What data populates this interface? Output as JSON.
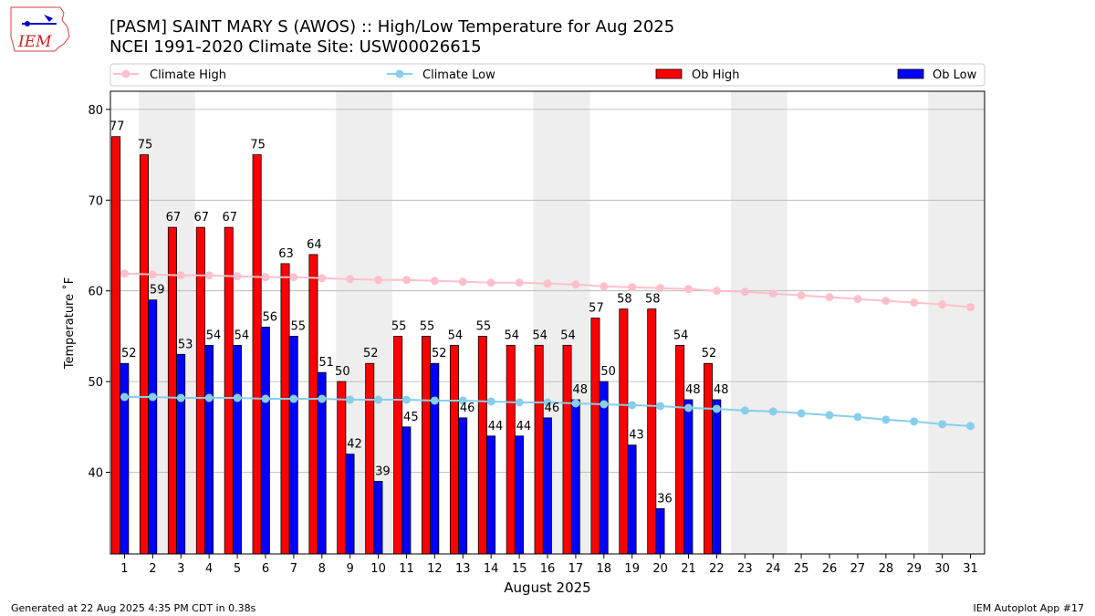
{
  "header": {
    "title_line1": "[PASM] SAINT MARY S (AWOS) :: High/Low Temperature for Aug 2025",
    "title_line2": "NCEI 1991-2020 Climate Site: USW00026615",
    "logo_text": "IEM"
  },
  "footer": {
    "left": "Generated at 22 Aug 2025 4:35 PM CDT in 0.38s",
    "right": "IEM Autoplot App #17"
  },
  "colors": {
    "climate_high": "#ffc0cb",
    "climate_low": "#87ceeb",
    "ob_high": "#ff0000",
    "ob_low": "#0000ff",
    "weekend_band": "#eeeeee",
    "grid": "#b0b0b0"
  },
  "chart_data": {
    "type": "bar",
    "xlabel": "August 2025",
    "ylabel": "Temperature ˚F",
    "ylim": [
      31,
      82
    ],
    "yticks": [
      40,
      50,
      60,
      70,
      80
    ],
    "grid": true,
    "legend_position": "top",
    "days": [
      1,
      2,
      3,
      4,
      5,
      6,
      7,
      8,
      9,
      10,
      11,
      12,
      13,
      14,
      15,
      16,
      17,
      18,
      19,
      20,
      21,
      22,
      23,
      24,
      25,
      26,
      27,
      28,
      29,
      30,
      31
    ],
    "weekend_bands": [
      [
        2,
        3
      ],
      [
        9,
        10
      ],
      [
        16,
        17
      ],
      [
        23,
        24
      ],
      [
        30,
        31
      ]
    ],
    "series": [
      {
        "name": "Climate High",
        "kind": "line",
        "values": [
          61.9,
          61.8,
          61.7,
          61.7,
          61.6,
          61.5,
          61.5,
          61.4,
          61.3,
          61.2,
          61.2,
          61.1,
          61.0,
          60.9,
          60.9,
          60.8,
          60.7,
          60.5,
          60.4,
          60.3,
          60.2,
          60.0,
          59.9,
          59.7,
          59.5,
          59.3,
          59.1,
          58.9,
          58.7,
          58.5,
          58.2
        ]
      },
      {
        "name": "Climate Low",
        "kind": "line",
        "values": [
          48.3,
          48.3,
          48.2,
          48.2,
          48.2,
          48.1,
          48.1,
          48.1,
          48.0,
          48.0,
          48.0,
          47.9,
          47.9,
          47.8,
          47.7,
          47.7,
          47.6,
          47.5,
          47.4,
          47.3,
          47.1,
          47.0,
          46.8,
          46.7,
          46.5,
          46.3,
          46.1,
          45.8,
          45.6,
          45.3,
          45.1
        ]
      },
      {
        "name": "Ob High",
        "kind": "bar",
        "values": [
          77,
          75,
          67,
          67,
          67,
          75,
          63,
          64,
          50,
          52,
          55,
          55,
          54,
          55,
          54,
          54,
          54,
          57,
          58,
          58,
          54,
          52
        ]
      },
      {
        "name": "Ob Low",
        "kind": "bar",
        "values": [
          52,
          59,
          53,
          54,
          54,
          56,
          55,
          51,
          42,
          39,
          45,
          52,
          46,
          44,
          44,
          46,
          48,
          50,
          43,
          36,
          48,
          48
        ]
      }
    ]
  }
}
